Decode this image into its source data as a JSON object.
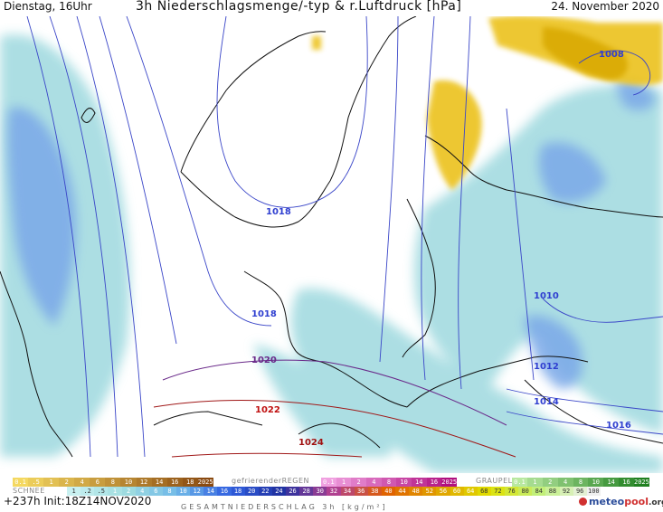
{
  "header": {
    "left": "Dienstag, 16Uhr",
    "center": "3h Niederschlagsmenge/-typ & r.Luftdruck [hPa]",
    "right": "24. November 2020"
  },
  "isobars": [
    {
      "label": "1008",
      "color": "#2f3fd0"
    },
    {
      "label": "1018",
      "color": "#2f3fd0"
    },
    {
      "label": "1018",
      "color": "#2f3fd0"
    },
    {
      "label": "1010",
      "color": "#2f3fd0"
    },
    {
      "label": "1012",
      "color": "#2f3fd0"
    },
    {
      "label": "1014",
      "color": "#2f3fd0"
    },
    {
      "label": "1016",
      "color": "#2f3fd0"
    },
    {
      "label": "1020",
      "color": "#6a2a8a"
    },
    {
      "label": "1022",
      "color": "#c01010"
    },
    {
      "label": "1024",
      "color": "#a01010"
    }
  ],
  "legend": {
    "snow_label": "SCHNEE",
    "snow_values": [
      "0.1",
      ".5",
      "1",
      "2",
      "4",
      "6",
      "8",
      "10",
      "12",
      "14",
      "16",
      "18",
      "2025+"
    ],
    "freezing_label": "gefrierenderREGEN",
    "freezing_values": [
      "0.1",
      "1",
      "2",
      "4",
      "8",
      "10",
      "14",
      "16",
      "2025+"
    ],
    "graupel_label": "GRAUPEL",
    "graupel_values": [
      "0.1",
      "1",
      "2",
      "4",
      "8",
      "10",
      "14",
      "16",
      "2025+"
    ],
    "rain_values": [
      "1",
      ".2",
      ".5",
      "1",
      "2",
      "4",
      "6",
      "8",
      "10",
      "12",
      "14",
      "16",
      "18",
      "20",
      "22",
      "24",
      "26",
      "28",
      "30",
      "32",
      "34",
      "36",
      "38",
      "40",
      "44",
      "48",
      "52",
      "56",
      "60",
      "64",
      "68",
      "72",
      "76",
      "80",
      "84",
      "88",
      "92",
      "96",
      "100"
    ],
    "total_label": "GESAMTNIEDERSCHLAG 3h [kg/m²]",
    "colors": {
      "snow": "#e8b800",
      "freezing": "#e040c0",
      "graupel": "#60c040",
      "rain_low": "#9fdde0",
      "rain_mid": "#3060e0",
      "rain_high": "#e06000"
    }
  },
  "footer": {
    "run": "+237h Init:18Z14NOV2020",
    "logo_a": "meteo",
    "logo_b": "pool",
    "logo_c": ".org"
  }
}
